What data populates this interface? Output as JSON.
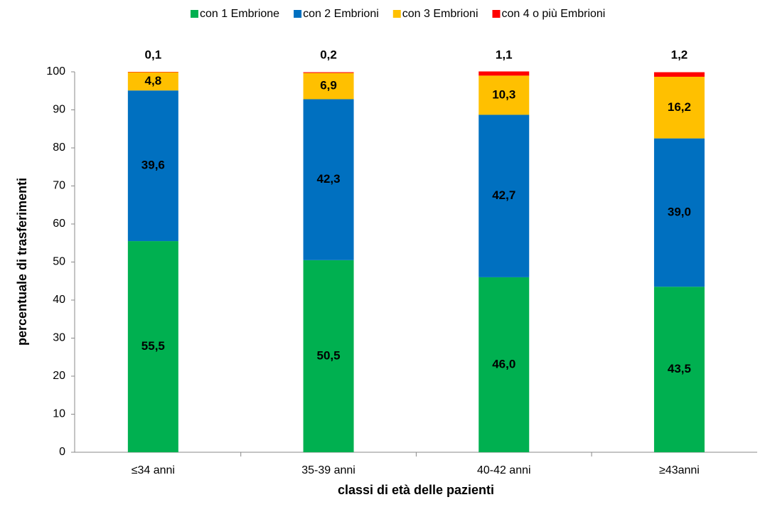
{
  "chart_data": {
    "type": "stacked_bar",
    "x_label": "classi di età delle pazienti",
    "y_label": "percentuale di trasferimenti",
    "categories": [
      "≤34 anni",
      "35-39 anni",
      "40-42 anni",
      "≥43anni"
    ],
    "series": [
      {
        "name": "con 1 Embrione",
        "color": "#00b050",
        "label_color": "#000000",
        "values": [
          55.5,
          50.5,
          46.0,
          43.5
        ],
        "value_labels": [
          "55,5",
          "50,5",
          "46,0",
          "43,5"
        ]
      },
      {
        "name": "con 2 Embrioni",
        "color": "#0070c0",
        "label_color": "#ffffff",
        "values": [
          39.6,
          42.3,
          42.7,
          39.0
        ],
        "value_labels": [
          "39,6",
          "42,3",
          "42,7",
          "39,0"
        ]
      },
      {
        "name": "con 3 Embrioni",
        "color": "#ffc000",
        "label_color": "#000000",
        "values": [
          4.8,
          6.9,
          10.3,
          16.2
        ],
        "value_labels": [
          "4,8",
          "6,9",
          "10,3",
          "16,2"
        ]
      },
      {
        "name": "con 4 o più Embrioni",
        "color": "#ff0000",
        "label_color": "#000000",
        "label_position": "above",
        "values": [
          0.1,
          0.2,
          1.1,
          1.2
        ],
        "value_labels": [
          "0,1",
          "0,2",
          "1,1",
          "1,2"
        ]
      }
    ],
    "ylim": [
      0,
      100
    ],
    "yticks": [
      0,
      10,
      20,
      30,
      40,
      50,
      60,
      70,
      80,
      90,
      100
    ],
    "legend": "top"
  }
}
